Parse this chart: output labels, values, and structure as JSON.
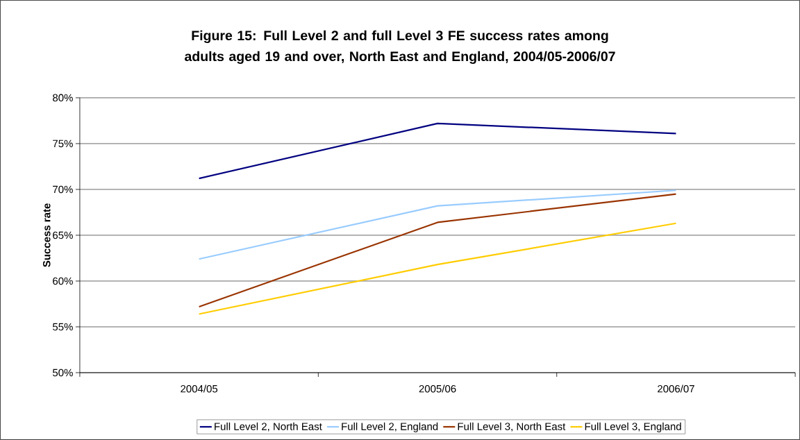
{
  "chart_data": {
    "type": "line",
    "title": "Figure 15: Full Level 2 and full Level 3 FE success rates among adults aged 19 and over, North East and England, 2004/05-2006/07",
    "ylabel": "Success rate",
    "categories": [
      "2004/05",
      "2005/06",
      "2006/07"
    ],
    "series": [
      {
        "name": "Full Level 2, North East",
        "color": "#000080",
        "values": [
          71.2,
          77.2,
          76.1
        ]
      },
      {
        "name": "Full Level 2, England",
        "color": "#99ccff",
        "values": [
          62.4,
          68.2,
          69.9
        ]
      },
      {
        "name": "Full Level 3, North East",
        "color": "#993300",
        "values": [
          57.2,
          66.4,
          69.5
        ]
      },
      {
        "name": "Full Level 3, England",
        "color": "#ffcc00",
        "values": [
          56.4,
          61.8,
          66.3
        ]
      }
    ],
    "ylim": [
      50,
      80
    ],
    "yticks": [
      {
        "value": 50,
        "label": "50%"
      },
      {
        "value": 55,
        "label": "55%"
      },
      {
        "value": 60,
        "label": "60%"
      },
      {
        "value": 65,
        "label": "65%"
      },
      {
        "value": 70,
        "label": "70%"
      },
      {
        "value": 75,
        "label": "75%"
      },
      {
        "value": 80,
        "label": "80%"
      }
    ],
    "grid": "y",
    "legend": "bottom",
    "marker": "none",
    "line_style": "solid"
  }
}
